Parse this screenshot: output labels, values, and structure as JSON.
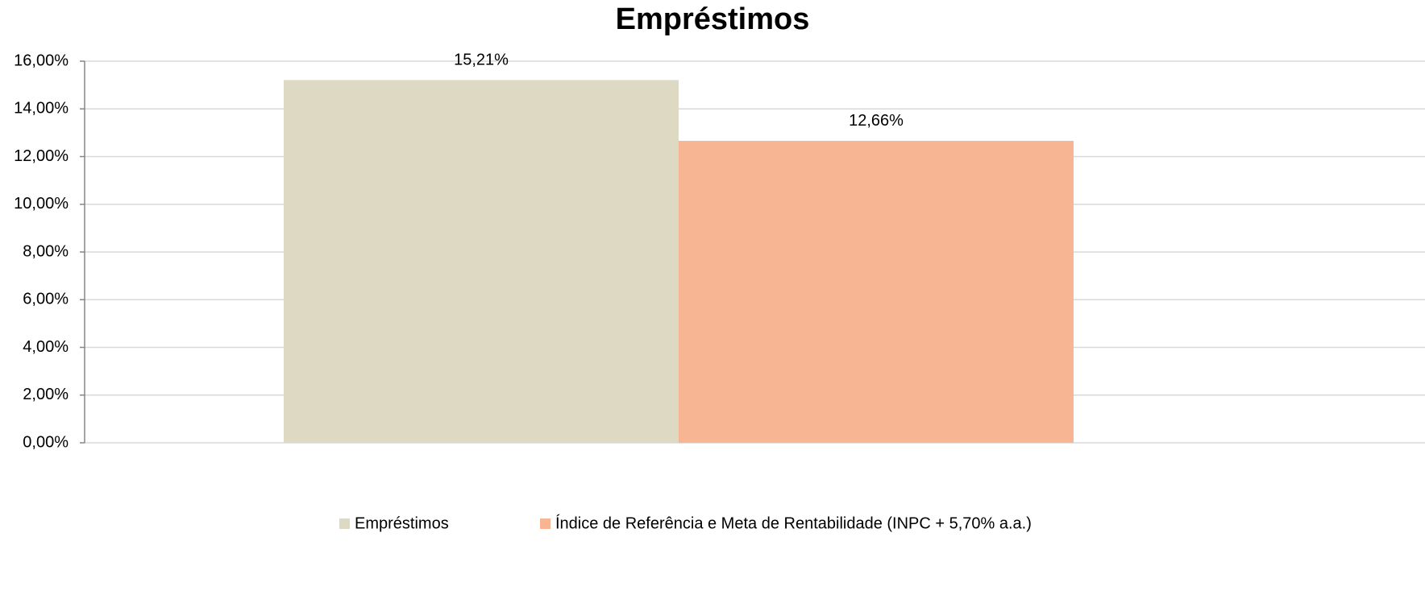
{
  "chart_data": {
    "type": "bar",
    "title": "Empréstimos",
    "categories": [
      null
    ],
    "series": [
      {
        "name": "Empréstimos",
        "color": "#ddd9c3",
        "values": [
          15.21
        ],
        "value_labels": [
          "15,21%"
        ]
      },
      {
        "name": "Índice de Referência e Meta de Rentabilidade (INPC + 5,70% a.a.)",
        "color": "#f8b593",
        "values": [
          12.66
        ],
        "value_labels": [
          "12,66%"
        ]
      }
    ],
    "ylim": [
      0,
      16
    ],
    "yticks": [
      {
        "value": 0,
        "label": "0,00%"
      },
      {
        "value": 2,
        "label": "2,00%"
      },
      {
        "value": 4,
        "label": "4,00%"
      },
      {
        "value": 6,
        "label": "6,00%"
      },
      {
        "value": 8,
        "label": "8,00%"
      },
      {
        "value": 10,
        "label": "10,00%"
      },
      {
        "value": 12,
        "label": "12,00%"
      },
      {
        "value": 14,
        "label": "14,00%"
      },
      {
        "value": 16,
        "label": "16,00%"
      }
    ],
    "grid": true,
    "legend": "bottom"
  }
}
